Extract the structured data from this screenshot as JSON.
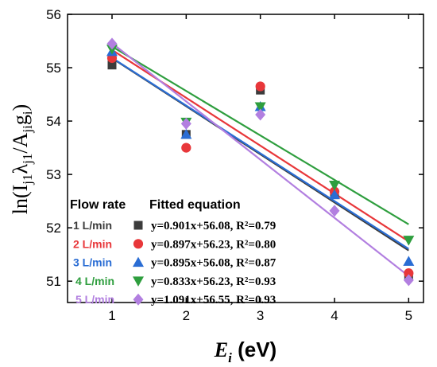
{
  "chart_data": {
    "type": "scatter",
    "title": "",
    "xlabel_main": "E",
    "xlabel_sub": "i",
    "xlabel_unit": " (eV)",
    "ylabel": "ln(Ij1λj1/Ajigi)",
    "xlim": [
      0.4,
      5.2
    ],
    "ylim": [
      50.6,
      56.0
    ],
    "x_ticks": [
      "1",
      "2",
      "3",
      "4",
      "5"
    ],
    "y_ticks": [
      "51",
      "52",
      "53",
      "54",
      "55",
      "56"
    ],
    "legend_position": "bottom-left",
    "legend_header_left": "Flow rate",
    "legend_header_right": "Fitted equation",
    "series": [
      {
        "name": "1 L/min",
        "color": "#3c3c3c",
        "marker": "square",
        "x": [
          1,
          2,
          3,
          4,
          5
        ],
        "y": [
          55.05,
          53.75,
          54.58,
          52.62,
          51.1
        ],
        "equation": "y=0.901x+56.08, R²=0.79",
        "fit": {
          "slope": -0.901,
          "intercept": 56.08
        }
      },
      {
        "name": "2 L/min",
        "color": "#e8373a",
        "marker": "circle",
        "x": [
          1,
          2,
          3,
          4,
          5
        ],
        "y": [
          55.18,
          53.5,
          54.65,
          52.68,
          51.15
        ],
        "equation": "y=0.897x+56.23, R²=0.80",
        "fit": {
          "slope": -0.897,
          "intercept": 56.23
        }
      },
      {
        "name": "3 L/min",
        "color": "#2a6dd4",
        "marker": "triangle-up",
        "x": [
          1,
          2,
          3,
          4,
          5
        ],
        "y": [
          55.3,
          53.75,
          54.27,
          52.62,
          51.37
        ],
        "equation": "y=0.895x+56.08, R²=0.87",
        "fit": {
          "slope": -0.895,
          "intercept": 56.08
        }
      },
      {
        "name": "4 L/min",
        "color": "#2e9e3e",
        "marker": "triangle-down",
        "x": [
          1,
          2,
          3,
          4,
          5
        ],
        "y": [
          55.35,
          53.98,
          54.27,
          52.8,
          51.77
        ],
        "equation": "y=0.833x+56.23, R²=0.93",
        "fit": {
          "slope": -0.833,
          "intercept": 56.23
        }
      },
      {
        "name": "5 L/min",
        "color": "#b27fe0",
        "marker": "diamond",
        "x": [
          1,
          2,
          3,
          4,
          5
        ],
        "y": [
          55.45,
          53.95,
          54.12,
          52.32,
          51.02
        ],
        "equation": "y=1.091x+56.55, R²=0.93",
        "fit": {
          "slope": -1.091,
          "intercept": 56.55
        }
      }
    ]
  }
}
